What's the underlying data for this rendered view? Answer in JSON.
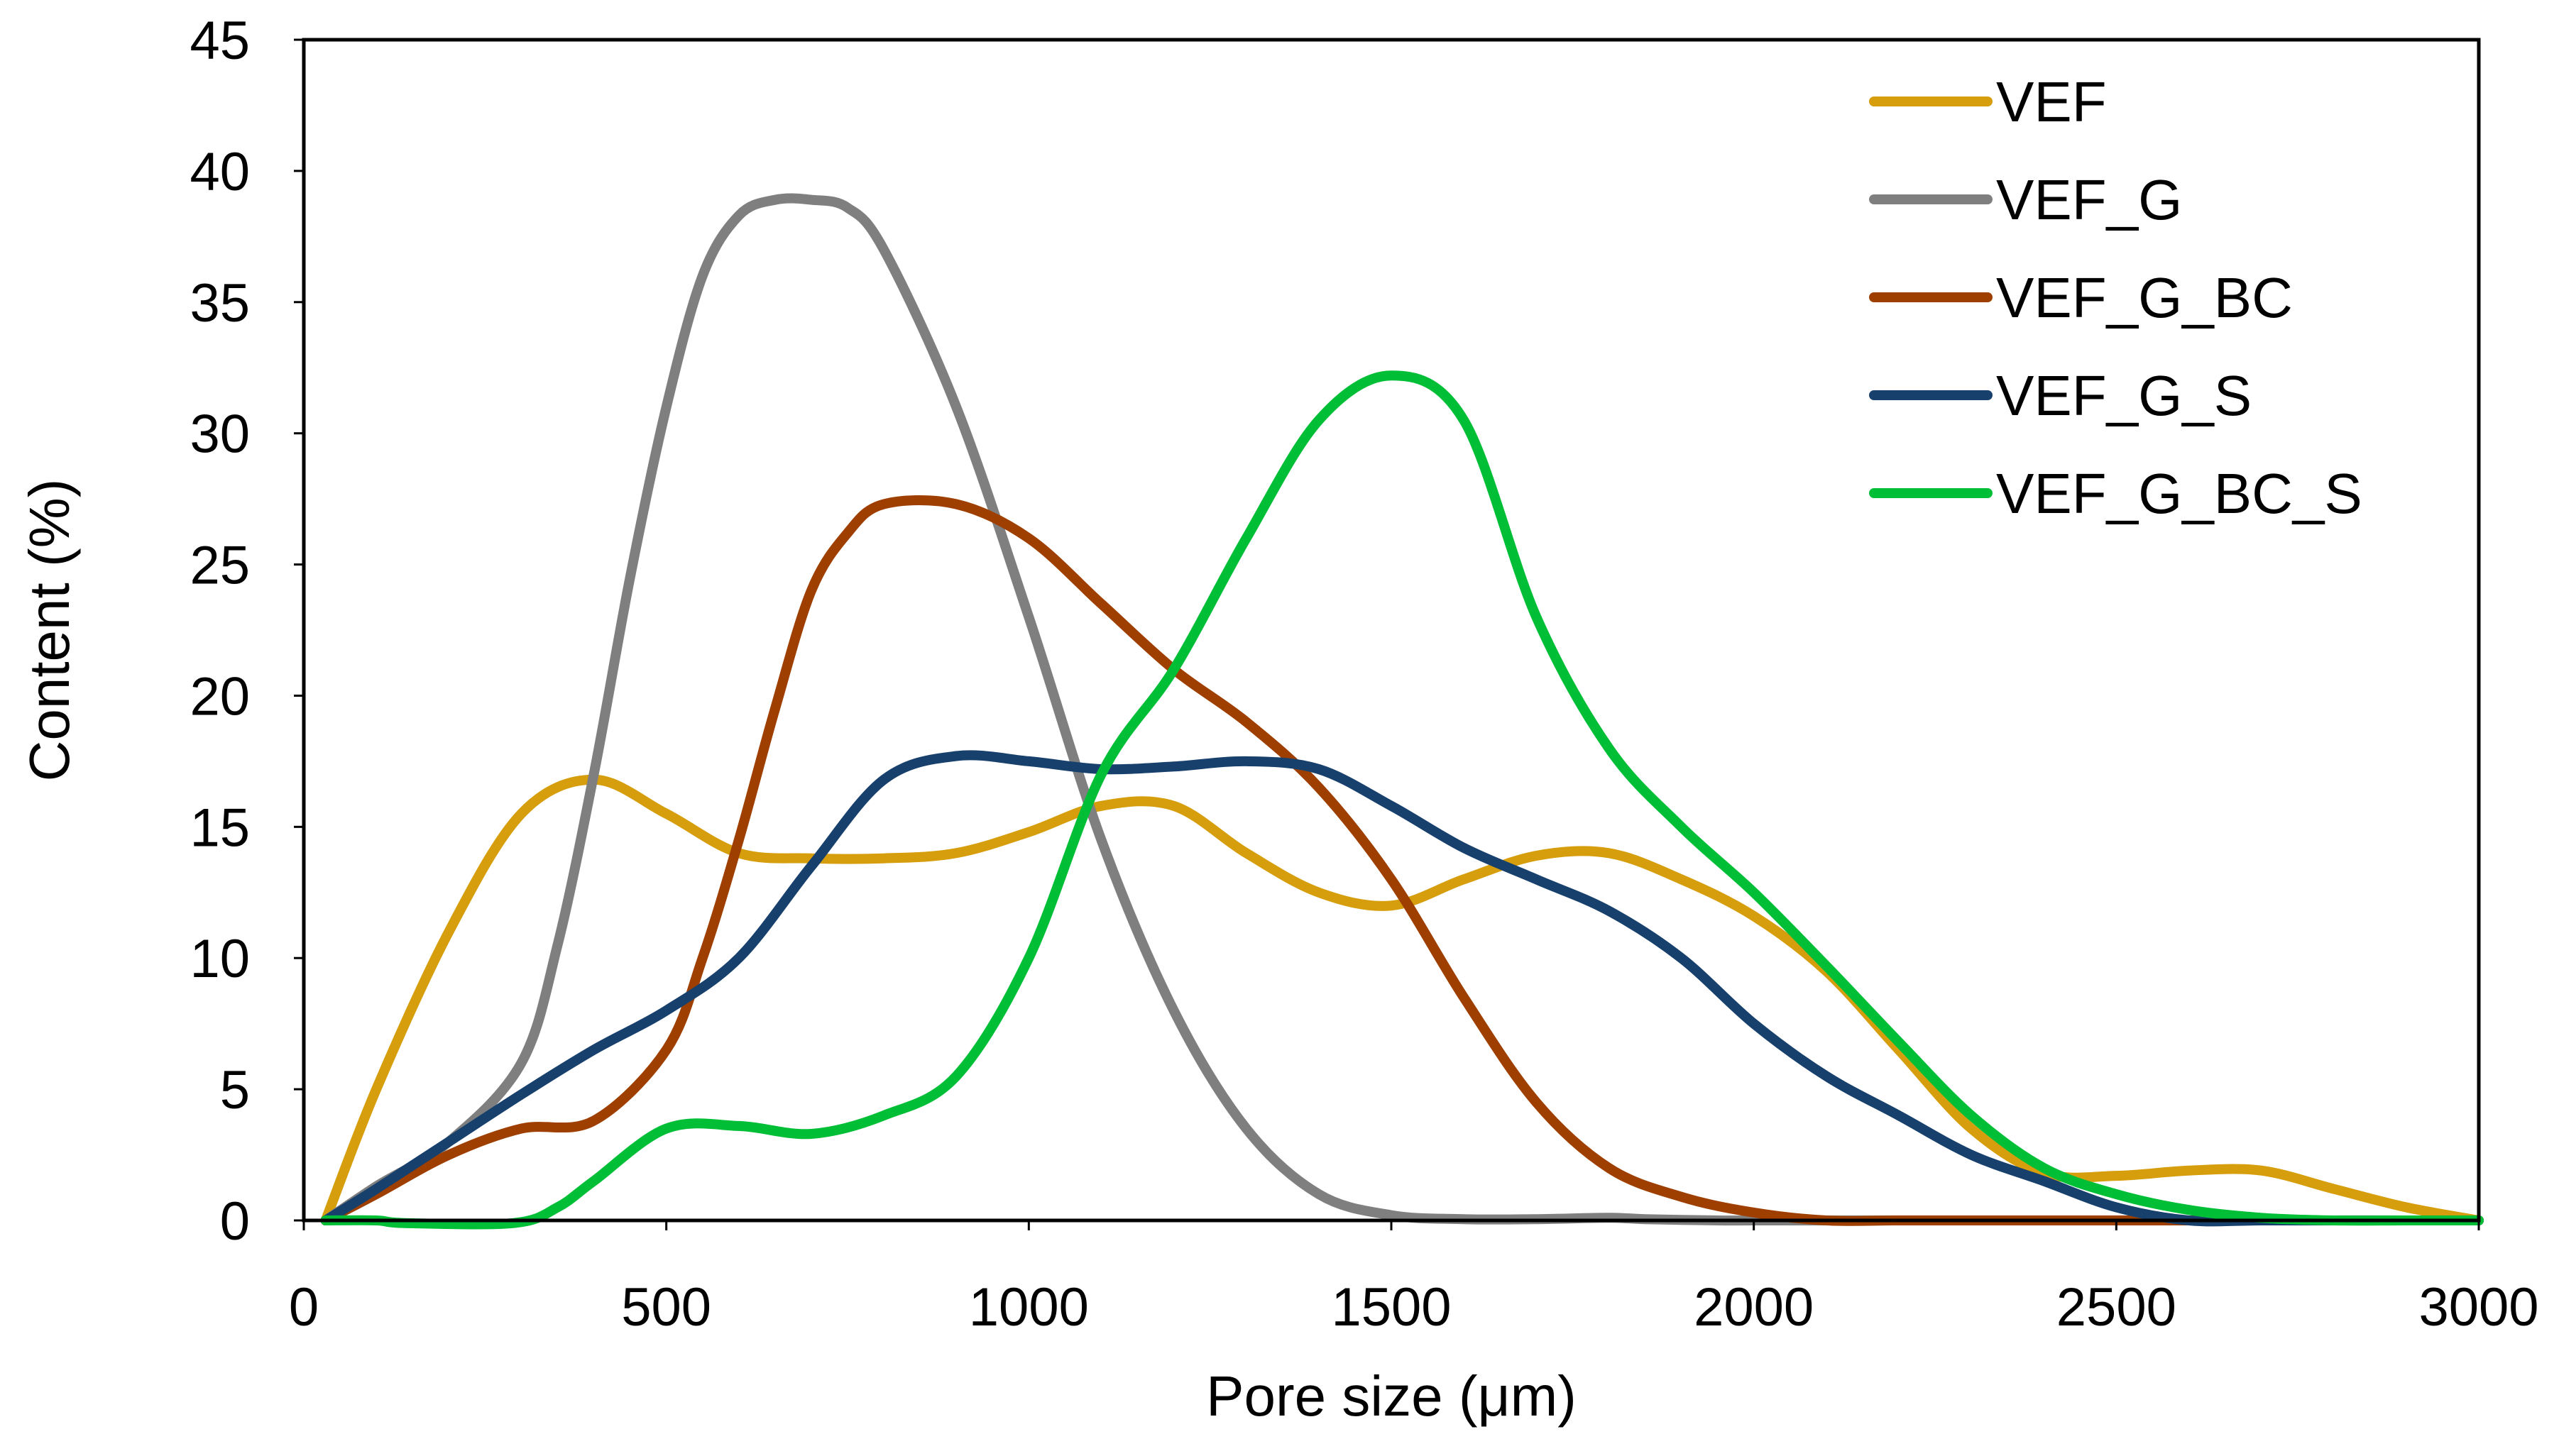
{
  "chart_data": {
    "type": "line",
    "title": "",
    "xlabel": "Pore size (μm)",
    "ylabel": "Content (%)",
    "xlim": [
      0,
      3000
    ],
    "ylim": [
      0,
      45
    ],
    "xticks": [
      0,
      500,
      1000,
      1500,
      2000,
      2500,
      3000
    ],
    "yticks": [
      0,
      5,
      10,
      15,
      20,
      25,
      30,
      35,
      40,
      45
    ],
    "grid": false,
    "legend_position": "top-right",
    "series": [
      {
        "name": "VEF",
        "color": "#D69E0C",
        "x": [
          30,
          100,
          200,
          300,
          400,
          500,
          600,
          700,
          800,
          900,
          1000,
          1100,
          1200,
          1300,
          1400,
          1500,
          1600,
          1700,
          1800,
          1900,
          2000,
          2100,
          2200,
          2300,
          2400,
          2500,
          2600,
          2700,
          2800,
          2900,
          3000
        ],
        "y": [
          0,
          5,
          11,
          15.5,
          16.8,
          15.5,
          14,
          13.8,
          13.8,
          14,
          14.8,
          15.8,
          15.8,
          14,
          12.5,
          12,
          13,
          13.9,
          14,
          13,
          11.6,
          9.5,
          6.5,
          3.5,
          1.8,
          1.7,
          1.9,
          1.9,
          1.2,
          0.5,
          0
        ]
      },
      {
        "name": "VEF_G",
        "color": "#7F7F7F",
        "x": [
          30,
          100,
          200,
          300,
          350,
          400,
          450,
          500,
          550,
          600,
          650,
          700,
          750,
          800,
          900,
          1000,
          1100,
          1200,
          1300,
          1400,
          1500,
          1600,
          1700,
          1800,
          1850,
          1950,
          2000,
          2100,
          2200,
          2300,
          2400,
          2500,
          2600,
          2700,
          2800,
          2900,
          3000
        ],
        "y": [
          0,
          1.3,
          3,
          6,
          10.5,
          17,
          24.5,
          31,
          36,
          38.3,
          38.9,
          38.9,
          38.6,
          37,
          31,
          23,
          14.5,
          8,
          3.5,
          1,
          0.2,
          0.05,
          0.05,
          0.1,
          0.05,
          0,
          0,
          0,
          0,
          0,
          0,
          0,
          0,
          0,
          0,
          0,
          0
        ]
      },
      {
        "name": "VEF_G_BC",
        "color": "#9E3F00",
        "x": [
          30,
          100,
          200,
          300,
          400,
          500,
          550,
          600,
          650,
          700,
          750,
          800,
          900,
          1000,
          1100,
          1200,
          1300,
          1400,
          1500,
          1600,
          1700,
          1800,
          1900,
          2000,
          2100,
          2200,
          2300,
          2400,
          2570,
          2700,
          2800,
          2900,
          3000
        ],
        "y": [
          0,
          1,
          2.5,
          3.5,
          3.8,
          6.5,
          10,
          14.5,
          19.5,
          24,
          26.2,
          27.3,
          27.3,
          26,
          23.5,
          21,
          19,
          16.5,
          13,
          8.5,
          4.5,
          2,
          0.9,
          0.3,
          0,
          0,
          0,
          0,
          0,
          0,
          0,
          0,
          0
        ]
      },
      {
        "name": "VEF_G_S",
        "color": "#17406D",
        "x": [
          30,
          100,
          200,
          300,
          400,
          500,
          600,
          700,
          800,
          900,
          1000,
          1100,
          1200,
          1300,
          1400,
          1500,
          1600,
          1700,
          1800,
          1900,
          2000,
          2100,
          2200,
          2300,
          2400,
          2500,
          2600,
          2700,
          2800,
          2900,
          3000
        ],
        "y": [
          0,
          1.2,
          3,
          4.8,
          6.5,
          8,
          10,
          13.5,
          16.8,
          17.7,
          17.5,
          17.2,
          17.3,
          17.5,
          17.2,
          15.8,
          14.2,
          13,
          11.8,
          10,
          7.5,
          5.5,
          4,
          2.5,
          1.5,
          0.5,
          0,
          0,
          0,
          0,
          0
        ]
      },
      {
        "name": "VEF_G_BC_S",
        "color": "#00BF37",
        "x": [
          30,
          100,
          140,
          290,
          350,
          400,
          500,
          600,
          700,
          800,
          900,
          1000,
          1100,
          1200,
          1300,
          1400,
          1500,
          1600,
          1700,
          1800,
          1900,
          2000,
          2100,
          2200,
          2300,
          2400,
          2500,
          2600,
          2700,
          2800,
          2900,
          3000
        ],
        "y": [
          0,
          0,
          -0.1,
          -0.1,
          0.5,
          1.5,
          3.5,
          3.6,
          3.3,
          4,
          5.5,
          10,
          17,
          21,
          26,
          30.5,
          32.2,
          30.5,
          23,
          18,
          15,
          12.5,
          9.7,
          6.8,
          4,
          2,
          1,
          0.4,
          0.1,
          0,
          0,
          0
        ]
      }
    ]
  }
}
